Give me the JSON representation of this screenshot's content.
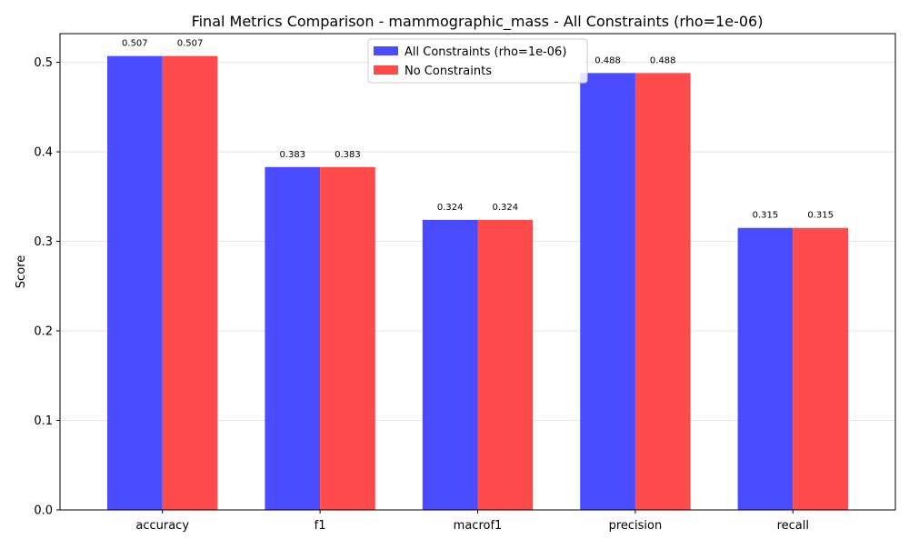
{
  "chart_data": {
    "type": "bar",
    "title": "Final Metrics Comparison - mammographic_mass - All Constraints (rho=1e-06)",
    "xlabel": "",
    "ylabel": "Score",
    "categories": [
      "accuracy",
      "f1",
      "macrof1",
      "precision",
      "recall"
    ],
    "series": [
      {
        "name": "All Constraints (rho=1e-06)",
        "values": [
          0.507,
          0.383,
          0.324,
          0.488,
          0.315
        ],
        "labels": [
          "0.507",
          "0.383",
          "0.324",
          "0.488",
          "0.315"
        ],
        "color": "#4b4bff"
      },
      {
        "name": "No Constraints",
        "values": [
          0.507,
          0.383,
          0.324,
          0.488,
          0.315
        ],
        "labels": [
          "0.507",
          "0.383",
          "0.324",
          "0.488",
          "0.315"
        ],
        "color": "#ff4b4b"
      }
    ],
    "ylim": [
      0,
      0.532
    ],
    "yticks": [
      0.0,
      0.1,
      0.2,
      0.3,
      0.4,
      0.5
    ],
    "ytick_labels": [
      "0.0",
      "0.1",
      "0.2",
      "0.3",
      "0.4",
      "0.5"
    ],
    "grid": "horizontal",
    "legend_position": "top-center"
  }
}
